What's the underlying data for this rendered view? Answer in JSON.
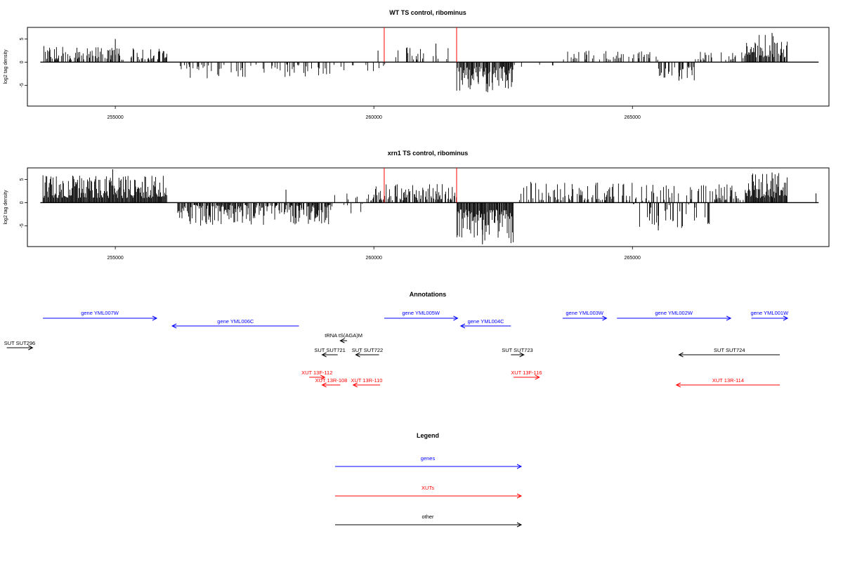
{
  "chart_data": [
    {
      "type": "bar",
      "title": "WT TS control, ribominus",
      "xlabel": "",
      "ylabel": "log2 tag density",
      "xlim": [
        253300,
        268800
      ],
      "ylim": [
        -9.5,
        7.5
      ],
      "xticks": [
        255000,
        260000,
        265000
      ],
      "xtick_labels": [
        "255000",
        "260000",
        "265000"
      ],
      "yticks": [
        5,
        0,
        -5
      ],
      "ytick_labels": [
        "5",
        "0",
        "-5"
      ],
      "baseline": [
        253550,
        268600
      ],
      "markers": [
        {
          "x": 260200,
          "value": 7.5,
          "color": "#ff0000"
        },
        {
          "x": 261600,
          "value": 7.5,
          "color": "#ff0000"
        }
      ],
      "regions": [
        {
          "start": 253600,
          "end": 255000,
          "min": 0.5,
          "max": 3.5,
          "density": 0.6
        },
        {
          "start": 255000,
          "end": 256000,
          "min": 0.5,
          "max": 3.0,
          "density": 0.5
        },
        {
          "start": 256200,
          "end": 259200,
          "min": -3.5,
          "max": -0.5,
          "density": 0.25
        },
        {
          "start": 259200,
          "end": 260300,
          "min": -2.0,
          "max": -0.5,
          "density": 0.1
        },
        {
          "start": 260300,
          "end": 261500,
          "min": 0.5,
          "max": 3.5,
          "density": 0.25
        },
        {
          "start": 261600,
          "end": 262700,
          "min": -6.5,
          "max": -1.0,
          "density": 0.9
        },
        {
          "start": 262700,
          "end": 263500,
          "min": -1.5,
          "max": -0.5,
          "density": 0.1
        },
        {
          "start": 263500,
          "end": 265500,
          "min": 0.5,
          "max": 2.5,
          "density": 0.2
        },
        {
          "start": 265500,
          "end": 266200,
          "min": -4.0,
          "max": -1.0,
          "density": 0.5
        },
        {
          "start": 266200,
          "end": 267200,
          "min": 0.5,
          "max": 2.5,
          "density": 0.3
        },
        {
          "start": 267200,
          "end": 268000,
          "min": 1.0,
          "max": 6.0,
          "density": 0.8
        }
      ],
      "spikes": [
        {
          "x": 255000,
          "value": 5.0
        },
        {
          "x": 257000,
          "value": -3.0
        },
        {
          "x": 260080,
          "value": 2.5
        },
        {
          "x": 261200,
          "value": 4.0
        },
        {
          "x": 262200,
          "value": -6.5
        },
        {
          "x": 265900,
          "value": -4.0
        },
        {
          "x": 267700,
          "value": 6.3
        }
      ]
    },
    {
      "type": "bar",
      "title": "xrn1 TS control, ribominus",
      "xlabel": "",
      "ylabel": "log2 tag density",
      "xlim": [
        253300,
        268800
      ],
      "ylim": [
        -9.5,
        7.5
      ],
      "xticks": [
        255000,
        260000,
        265000
      ],
      "xtick_labels": [
        "255000",
        "260000",
        "265000"
      ],
      "yticks": [
        5,
        0,
        -5
      ],
      "ytick_labels": [
        "5",
        "0",
        "-5"
      ],
      "baseline": [
        253550,
        268600
      ],
      "markers": [
        {
          "x": 260200,
          "value": 7.5,
          "color": "#ff0000"
        },
        {
          "x": 261600,
          "value": 7.5,
          "color": "#ff0000"
        }
      ],
      "regions": [
        {
          "start": 253600,
          "end": 256000,
          "min": 1.0,
          "max": 6.0,
          "density": 1.0
        },
        {
          "start": 256200,
          "end": 259200,
          "min": -5.0,
          "max": -0.5,
          "density": 0.8
        },
        {
          "start": 259200,
          "end": 260000,
          "min": -2.5,
          "max": 2.0,
          "density": 0.3
        },
        {
          "start": 260000,
          "end": 261600,
          "min": 0.5,
          "max": 4.0,
          "density": 0.7
        },
        {
          "start": 261600,
          "end": 262700,
          "min": -9.0,
          "max": -1.5,
          "density": 1.0
        },
        {
          "start": 262800,
          "end": 265000,
          "min": 0.5,
          "max": 4.5,
          "density": 0.5
        },
        {
          "start": 265000,
          "end": 266500,
          "min": -5.5,
          "max": 4.0,
          "density": 0.6
        },
        {
          "start": 266500,
          "end": 267200,
          "min": 0.5,
          "max": 4.0,
          "density": 0.6
        },
        {
          "start": 267200,
          "end": 268000,
          "min": 1.0,
          "max": 6.5,
          "density": 1.0
        }
      ],
      "spikes": [
        {
          "x": 254950,
          "value": 7.2
        },
        {
          "x": 258300,
          "value": 2.8
        },
        {
          "x": 262100,
          "value": -9.0
        },
        {
          "x": 265500,
          "value": -6.0
        },
        {
          "x": 267700,
          "value": 6.5
        },
        {
          "x": 268550,
          "value": 2.0
        }
      ]
    }
  ],
  "annotations": {
    "title": "Annotations",
    "xlim": [
      253300,
      268800
    ],
    "colors": {
      "genes": "#0000ff",
      "XUTs": "#ff0000",
      "other": "#000000"
    },
    "features": [
      {
        "label": "gene YML007W",
        "type": "genes",
        "strand": "+",
        "start": 253600,
        "end": 255800,
        "row": 0
      },
      {
        "label": "gene YML006C",
        "type": "genes",
        "strand": "-",
        "start": 256100,
        "end": 258550,
        "row": 1
      },
      {
        "label": "gene YML005W",
        "type": "genes",
        "strand": "+",
        "start": 260200,
        "end": 261620,
        "row": 0
      },
      {
        "label": "gene YML004C",
        "type": "genes",
        "strand": "-",
        "start": 261680,
        "end": 262650,
        "row": 1
      },
      {
        "label": "gene YML003W",
        "type": "genes",
        "strand": "+",
        "start": 263650,
        "end": 264500,
        "row": 0
      },
      {
        "label": "gene YML002W",
        "type": "genes",
        "strand": "+",
        "start": 264700,
        "end": 266900,
        "row": 0
      },
      {
        "label": "gene YML001W",
        "type": "genes",
        "strand": "+",
        "start": 267300,
        "end": 268000,
        "row": 0
      },
      {
        "label": "tRNA tS(AGA)M",
        "type": "other",
        "strand": "-",
        "start": 259350,
        "end": 259480,
        "row": 2
      },
      {
        "label": "SUT SUT296",
        "type": "other",
        "strand": "+",
        "start": 252900,
        "end": 253400,
        "row": 3
      },
      {
        "label": "SUT SUT721",
        "type": "other",
        "strand": "-",
        "start": 259000,
        "end": 259300,
        "row": 4
      },
      {
        "label": "SUT SUT722",
        "type": "other",
        "strand": "-",
        "start": 259650,
        "end": 260100,
        "row": 4
      },
      {
        "label": "SUT SUT723",
        "type": "other",
        "strand": "+",
        "start": 262650,
        "end": 262900,
        "row": 4
      },
      {
        "label": "SUT SUT724",
        "type": "other",
        "strand": "-",
        "start": 265900,
        "end": 267850,
        "row": 4
      },
      {
        "label": "XUT 13F-112",
        "type": "XUTs",
        "strand": "+",
        "start": 258750,
        "end": 259050,
        "row": 5
      },
      {
        "label": "XUT 13R-108",
        "type": "XUTs",
        "strand": "-",
        "start": 259000,
        "end": 259350,
        "row": 6
      },
      {
        "label": "XUT 13R-110",
        "type": "XUTs",
        "strand": "-",
        "start": 259600,
        "end": 260120,
        "row": 6
      },
      {
        "label": "XUT 13F-116",
        "type": "XUTs",
        "strand": "+",
        "start": 262700,
        "end": 263200,
        "row": 5
      },
      {
        "label": "XUT 13R-114",
        "type": "XUTs",
        "strand": "-",
        "start": 265850,
        "end": 267850,
        "row": 6
      }
    ]
  },
  "legend": {
    "title": "Legend",
    "items": [
      {
        "label": "genes",
        "color": "#0000ff"
      },
      {
        "label": "XUTs",
        "color": "#ff0000"
      },
      {
        "label": "other",
        "color": "#000000"
      }
    ]
  }
}
